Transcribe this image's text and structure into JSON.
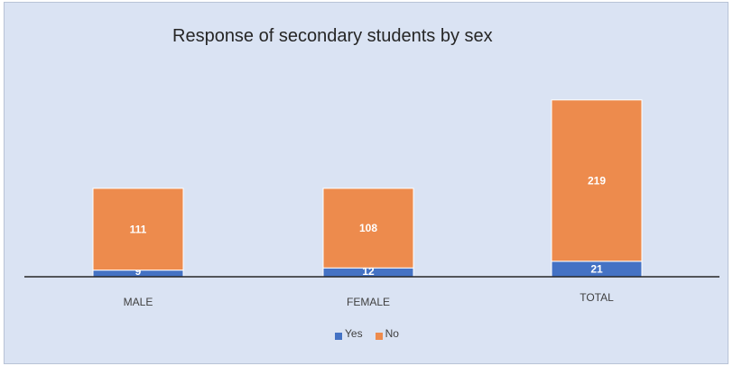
{
  "chart_data": {
    "type": "bar",
    "stacked": true,
    "title": "Response of secondary students by sex",
    "categories": [
      "MALE",
      "FEMALE",
      "TOTAL"
    ],
    "series": [
      {
        "name": "Yes",
        "values": [
          9,
          12,
          21
        ],
        "color": "#4472c4"
      },
      {
        "name": "No",
        "values": [
          111,
          108,
          219
        ],
        "color": "#ed8b4d"
      }
    ],
    "xlabel": "",
    "ylabel": "",
    "ylim": [
      0,
      240
    ],
    "grid": false,
    "legend_position": "bottom",
    "data_labels": true
  }
}
